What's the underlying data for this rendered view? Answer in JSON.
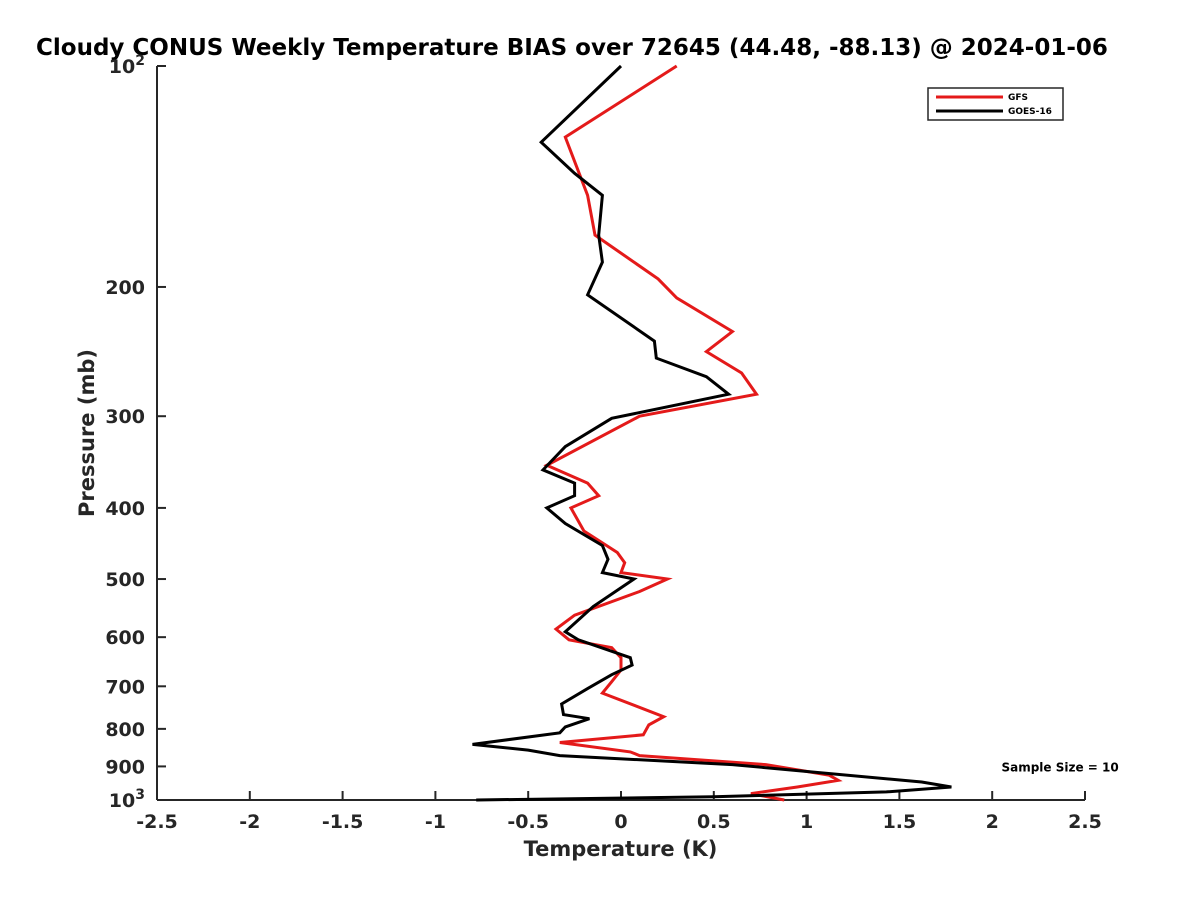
{
  "chart_data": {
    "type": "line",
    "title": "Cloudy CONUS Weekly Temperature BIAS over 72645 (44.48, -88.13) @ 2024-01-06",
    "xlabel": "Temperature (K)",
    "ylabel": "Pressure (mb)",
    "xlim": [
      -2.5,
      2.5
    ],
    "ylim": [
      100,
      1000
    ],
    "y_scale": "log",
    "y_reversed": true,
    "grid": false,
    "legend_position": "top-right",
    "x_ticks": [
      -2.5,
      -2,
      -1.5,
      -1,
      -0.5,
      0,
      0.5,
      1,
      1.5,
      2,
      2.5
    ],
    "x_tick_labels": [
      "-2.5",
      "-2",
      "-1.5",
      "-1",
      "-0.5",
      "0",
      "0.5",
      "1",
      "1.5",
      "2",
      "2.5"
    ],
    "y_ticks": [
      100,
      200,
      300,
      400,
      500,
      600,
      700,
      800,
      900,
      1000
    ],
    "y_tick_labels": [
      {
        "base": "10",
        "exp": "2"
      },
      {
        "base": "200",
        "exp": ""
      },
      {
        "base": "300",
        "exp": ""
      },
      {
        "base": "400",
        "exp": ""
      },
      {
        "base": "500",
        "exp": ""
      },
      {
        "base": "600",
        "exp": ""
      },
      {
        "base": "700",
        "exp": ""
      },
      {
        "base": "800",
        "exp": ""
      },
      {
        "base": "900",
        "exp": ""
      },
      {
        "base": "10",
        "exp": "3"
      }
    ],
    "series": [
      {
        "name": "GFS",
        "color": "#e41a1a",
        "points": [
          [
            0.3,
            100
          ],
          [
            -0.3,
            125
          ],
          [
            -0.18,
            150
          ],
          [
            -0.14,
            170
          ],
          [
            0.2,
            195
          ],
          [
            0.3,
            207
          ],
          [
            0.6,
            230
          ],
          [
            0.46,
            245
          ],
          [
            0.65,
            262
          ],
          [
            0.73,
            280
          ],
          [
            0.1,
            300
          ],
          [
            -0.4,
            350
          ],
          [
            -0.18,
            370
          ],
          [
            -0.12,
            385
          ],
          [
            -0.27,
            400
          ],
          [
            -0.2,
            430
          ],
          [
            -0.02,
            460
          ],
          [
            0.02,
            475
          ],
          [
            0.0,
            490
          ],
          [
            0.25,
            500
          ],
          [
            0.1,
            520
          ],
          [
            -0.25,
            560
          ],
          [
            -0.35,
            585
          ],
          [
            -0.28,
            605
          ],
          [
            -0.05,
            620
          ],
          [
            0.0,
            640
          ],
          [
            0.0,
            665
          ],
          [
            -0.05,
            690
          ],
          [
            -0.1,
            715
          ],
          [
            0.23,
            770
          ],
          [
            0.15,
            790
          ],
          [
            0.12,
            815
          ],
          [
            -0.33,
            835
          ],
          [
            0.05,
            860
          ],
          [
            0.1,
            870
          ],
          [
            0.78,
            895
          ],
          [
            1.12,
            925
          ],
          [
            1.17,
            940
          ],
          [
            0.95,
            960
          ],
          [
            0.7,
            980
          ],
          [
            0.88,
            1000
          ]
        ]
      },
      {
        "name": "GOES-16",
        "color": "#000000",
        "points": [
          [
            0.0,
            100
          ],
          [
            -0.43,
            127
          ],
          [
            -0.25,
            140
          ],
          [
            -0.1,
            150
          ],
          [
            -0.12,
            170
          ],
          [
            -0.1,
            185
          ],
          [
            -0.18,
            205
          ],
          [
            0.18,
            237
          ],
          [
            0.19,
            250
          ],
          [
            0.46,
            265
          ],
          [
            0.58,
            280
          ],
          [
            -0.05,
            302
          ],
          [
            -0.3,
            330
          ],
          [
            -0.42,
            355
          ],
          [
            -0.25,
            370
          ],
          [
            -0.25,
            385
          ],
          [
            -0.4,
            400
          ],
          [
            -0.3,
            420
          ],
          [
            -0.1,
            450
          ],
          [
            -0.07,
            470
          ],
          [
            -0.1,
            490
          ],
          [
            0.07,
            500
          ],
          [
            -0.15,
            545
          ],
          [
            -0.3,
            590
          ],
          [
            -0.23,
            605
          ],
          [
            0.05,
            640
          ],
          [
            0.06,
            655
          ],
          [
            -0.05,
            675
          ],
          [
            -0.18,
            705
          ],
          [
            -0.32,
            740
          ],
          [
            -0.31,
            765
          ],
          [
            -0.17,
            775
          ],
          [
            -0.3,
            795
          ],
          [
            -0.33,
            810
          ],
          [
            -0.8,
            840
          ],
          [
            -0.5,
            855
          ],
          [
            -0.33,
            870
          ],
          [
            0.6,
            895
          ],
          [
            1.62,
            945
          ],
          [
            1.78,
            960
          ],
          [
            1.43,
            975
          ],
          [
            0.5,
            990
          ],
          [
            -0.78,
            1000
          ]
        ]
      }
    ],
    "annotations": [
      {
        "text": "Sample Size = 10",
        "x": 2.05,
        "y": 900
      }
    ]
  }
}
